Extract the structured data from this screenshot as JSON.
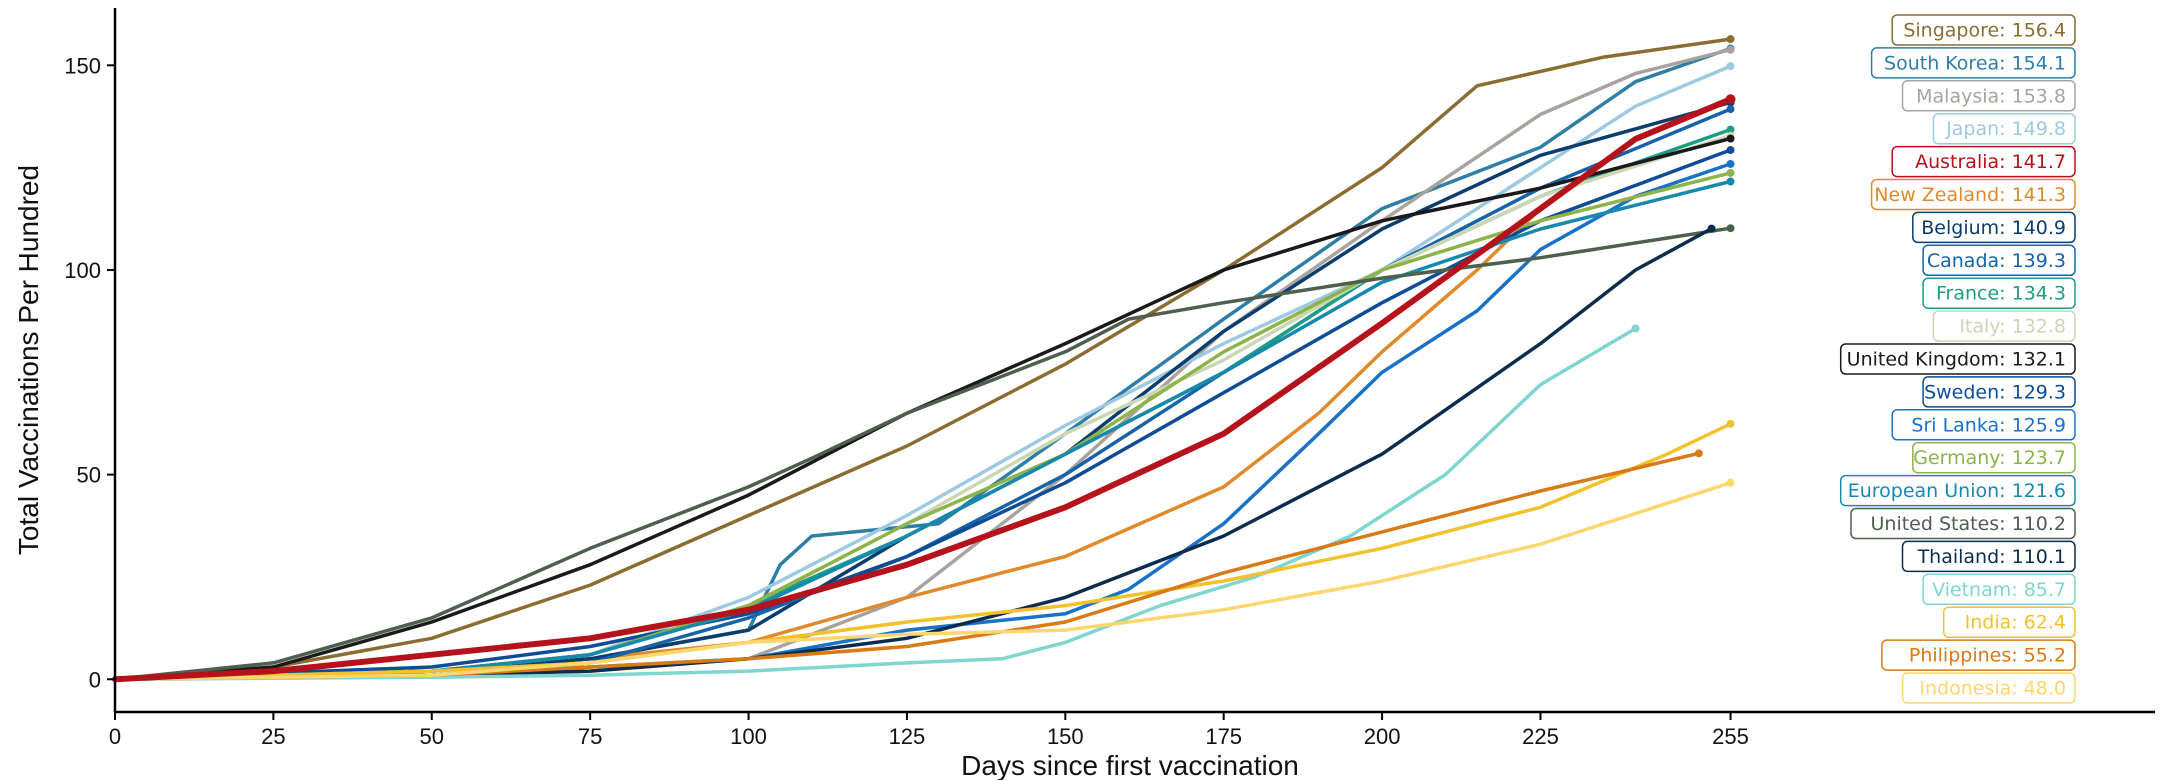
{
  "chart_data": {
    "type": "line",
    "xlabel": "Days since first vaccination",
    "ylabel": "Total Vaccinations Per Hundred",
    "xlim": [
      0,
      322
    ],
    "ylim": [
      -8,
      164
    ],
    "xticks": [
      0,
      25,
      50,
      75,
      100,
      125,
      150,
      175,
      200,
      225,
      255
    ],
    "yticks": [
      0,
      50,
      100,
      150
    ],
    "grid": false,
    "legend_placement": "right",
    "series": [
      {
        "name": "Singapore",
        "label": "Singapore: 156.4",
        "color": "#8c6d31",
        "width": 3.5,
        "points": [
          [
            0,
            0
          ],
          [
            25,
            3
          ],
          [
            50,
            10
          ],
          [
            75,
            23
          ],
          [
            100,
            40
          ],
          [
            125,
            57
          ],
          [
            150,
            77
          ],
          [
            175,
            100
          ],
          [
            200,
            125
          ],
          [
            215,
            145
          ],
          [
            235,
            152
          ],
          [
            255,
            156.4
          ]
        ]
      },
      {
        "name": "South Korea",
        "label": "South Korea: 154.1",
        "color": "#2e7ea6",
        "width": 3.5,
        "points": [
          [
            0,
            0
          ],
          [
            50,
            2
          ],
          [
            75,
            5
          ],
          [
            100,
            12
          ],
          [
            105,
            28
          ],
          [
            110,
            35
          ],
          [
            130,
            38
          ],
          [
            150,
            60
          ],
          [
            175,
            88
          ],
          [
            200,
            115
          ],
          [
            225,
            130
          ],
          [
            240,
            146
          ],
          [
            255,
            154.1
          ]
        ]
      },
      {
        "name": "Malaysia",
        "label": "Malaysia: 153.8",
        "color": "#a8a39e",
        "width": 3.5,
        "points": [
          [
            0,
            0
          ],
          [
            50,
            1
          ],
          [
            75,
            2
          ],
          [
            100,
            5
          ],
          [
            125,
            20
          ],
          [
            150,
            50
          ],
          [
            175,
            85
          ],
          [
            200,
            112
          ],
          [
            225,
            138
          ],
          [
            240,
            148
          ],
          [
            255,
            153.8
          ]
        ]
      },
      {
        "name": "Japan",
        "label": "Japan: 149.8",
        "color": "#9ecae1",
        "width": 3.5,
        "points": [
          [
            0,
            0
          ],
          [
            50,
            2
          ],
          [
            75,
            6
          ],
          [
            100,
            20
          ],
          [
            125,
            40
          ],
          [
            150,
            62
          ],
          [
            175,
            82
          ],
          [
            200,
            100
          ],
          [
            225,
            125
          ],
          [
            240,
            140
          ],
          [
            255,
            149.8
          ]
        ]
      },
      {
        "name": "Australia",
        "label": "Australia: 141.7",
        "color": "#b5121b",
        "width": 6,
        "points": [
          [
            0,
            0
          ],
          [
            25,
            2
          ],
          [
            50,
            6
          ],
          [
            75,
            10
          ],
          [
            100,
            17
          ],
          [
            125,
            28
          ],
          [
            150,
            42
          ],
          [
            175,
            60
          ],
          [
            200,
            87
          ],
          [
            225,
            115
          ],
          [
            240,
            132
          ],
          [
            255,
            141.7
          ]
        ]
      },
      {
        "name": "New Zealand",
        "label": "New Zealand: 141.3",
        "color": "#e08a2c",
        "width": 3.5,
        "points": [
          [
            0,
            0
          ],
          [
            50,
            2
          ],
          [
            75,
            5
          ],
          [
            100,
            9
          ],
          [
            125,
            20
          ],
          [
            150,
            30
          ],
          [
            175,
            47
          ],
          [
            190,
            65
          ],
          [
            200,
            80
          ],
          [
            215,
            100
          ],
          [
            225,
            115
          ],
          [
            240,
            132
          ],
          [
            255,
            141.3
          ]
        ]
      },
      {
        "name": "Belgium",
        "label": "Belgium: 140.9",
        "color": "#0b3d6e",
        "width": 3.5,
        "points": [
          [
            0,
            0
          ],
          [
            50,
            2
          ],
          [
            75,
            5
          ],
          [
            100,
            12
          ],
          [
            125,
            35
          ],
          [
            150,
            55
          ],
          [
            175,
            85
          ],
          [
            200,
            110
          ],
          [
            225,
            128
          ],
          [
            255,
            140.9
          ]
        ]
      },
      {
        "name": "Canada",
        "label": "Canada: 139.3",
        "color": "#1763a8",
        "width": 3.5,
        "points": [
          [
            0,
            0
          ],
          [
            50,
            1
          ],
          [
            75,
            4
          ],
          [
            100,
            15
          ],
          [
            125,
            30
          ],
          [
            150,
            50
          ],
          [
            175,
            75
          ],
          [
            200,
            100
          ],
          [
            225,
            120
          ],
          [
            255,
            139.3
          ]
        ]
      },
      {
        "name": "France",
        "label": "France: 134.3",
        "color": "#1d9e80",
        "width": 3.5,
        "points": [
          [
            0,
            0
          ],
          [
            50,
            2
          ],
          [
            75,
            6
          ],
          [
            100,
            18
          ],
          [
            125,
            35
          ],
          [
            150,
            55
          ],
          [
            175,
            75
          ],
          [
            200,
            100
          ],
          [
            225,
            118
          ],
          [
            255,
            134.3
          ]
        ]
      },
      {
        "name": "Italy",
        "label": "Italy: 132.8",
        "color": "#cbd7b4",
        "width": 3.5,
        "points": [
          [
            0,
            0
          ],
          [
            50,
            2
          ],
          [
            75,
            6
          ],
          [
            100,
            18
          ],
          [
            125,
            38
          ],
          [
            150,
            60
          ],
          [
            175,
            78
          ],
          [
            200,
            100
          ],
          [
            225,
            118
          ],
          [
            255,
            132.8
          ]
        ]
      },
      {
        "name": "United Kingdom",
        "label": "United Kingdom: 132.1",
        "color": "#1a1a1a",
        "width": 3.5,
        "points": [
          [
            0,
            0
          ],
          [
            25,
            3
          ],
          [
            50,
            14
          ],
          [
            75,
            28
          ],
          [
            100,
            45
          ],
          [
            125,
            65
          ],
          [
            150,
            82
          ],
          [
            175,
            100
          ],
          [
            200,
            112
          ],
          [
            225,
            120
          ],
          [
            255,
            132.1
          ]
        ]
      },
      {
        "name": "Sweden",
        "label": "Sweden: 129.3",
        "color": "#0f4c96",
        "width": 3.5,
        "points": [
          [
            0,
            0
          ],
          [
            50,
            3
          ],
          [
            75,
            8
          ],
          [
            100,
            16
          ],
          [
            125,
            30
          ],
          [
            150,
            48
          ],
          [
            175,
            70
          ],
          [
            200,
            92
          ],
          [
            225,
            112
          ],
          [
            255,
            129.3
          ]
        ]
      },
      {
        "name": "Sri Lanka",
        "label": "Sri Lanka: 125.9",
        "color": "#1a72c8",
        "width": 3.5,
        "points": [
          [
            0,
            0
          ],
          [
            50,
            1
          ],
          [
            75,
            3
          ],
          [
            100,
            5
          ],
          [
            125,
            12
          ],
          [
            150,
            16
          ],
          [
            160,
            22
          ],
          [
            175,
            38
          ],
          [
            190,
            60
          ],
          [
            200,
            75
          ],
          [
            215,
            90
          ],
          [
            225,
            105
          ],
          [
            240,
            118
          ],
          [
            255,
            125.9
          ]
        ]
      },
      {
        "name": "Germany",
        "label": "Germany: 123.7",
        "color": "#8db34a",
        "width": 3.5,
        "points": [
          [
            0,
            0
          ],
          [
            50,
            2
          ],
          [
            75,
            6
          ],
          [
            100,
            18
          ],
          [
            125,
            38
          ],
          [
            150,
            55
          ],
          [
            175,
            80
          ],
          [
            200,
            100
          ],
          [
            225,
            112
          ],
          [
            255,
            123.7
          ]
        ]
      },
      {
        "name": "European Union",
        "label": "European Union: 121.6",
        "color": "#168aad",
        "width": 3.5,
        "points": [
          [
            0,
            0
          ],
          [
            50,
            2
          ],
          [
            75,
            6
          ],
          [
            100,
            17
          ],
          [
            125,
            35
          ],
          [
            150,
            55
          ],
          [
            175,
            75
          ],
          [
            200,
            97
          ],
          [
            225,
            110
          ],
          [
            255,
            121.6
          ]
        ]
      },
      {
        "name": "United States",
        "label": "United States: 110.2",
        "color": "#4f5f4d",
        "width": 3.5,
        "points": [
          [
            0,
            0
          ],
          [
            25,
            4
          ],
          [
            50,
            15
          ],
          [
            75,
            32
          ],
          [
            100,
            47
          ],
          [
            110,
            54
          ],
          [
            125,
            65
          ],
          [
            150,
            80
          ],
          [
            160,
            88
          ],
          [
            175,
            92
          ],
          [
            200,
            98
          ],
          [
            225,
            103
          ],
          [
            255,
            110.2
          ]
        ]
      },
      {
        "name": "Thailand",
        "label": "Thailand: 110.1",
        "color": "#0c2c4e",
        "width": 3.5,
        "points": [
          [
            0,
            0
          ],
          [
            50,
            1
          ],
          [
            75,
            2
          ],
          [
            100,
            5
          ],
          [
            125,
            10
          ],
          [
            150,
            20
          ],
          [
            175,
            35
          ],
          [
            200,
            55
          ],
          [
            225,
            82
          ],
          [
            240,
            100
          ],
          [
            252,
            110.1
          ]
        ]
      },
      {
        "name": "Vietnam",
        "label": "Vietnam: 85.7",
        "color": "#7fd6cf",
        "width": 3.5,
        "points": [
          [
            0,
            0
          ],
          [
            50,
            0.5
          ],
          [
            75,
            1
          ],
          [
            100,
            2
          ],
          [
            125,
            4
          ],
          [
            140,
            5
          ],
          [
            150,
            9
          ],
          [
            165,
            18
          ],
          [
            180,
            25
          ],
          [
            195,
            35
          ],
          [
            210,
            50
          ],
          [
            225,
            72
          ],
          [
            240,
            85.7
          ]
        ]
      },
      {
        "name": "India",
        "label": "India: 62.4",
        "color": "#f2c12e",
        "width": 3.5,
        "points": [
          [
            0,
            0
          ],
          [
            50,
            2
          ],
          [
            75,
            4
          ],
          [
            100,
            9
          ],
          [
            125,
            14
          ],
          [
            150,
            18
          ],
          [
            175,
            24
          ],
          [
            200,
            32
          ],
          [
            225,
            42
          ],
          [
            245,
            55
          ],
          [
            255,
            62.4
          ]
        ]
      },
      {
        "name": "Philippines",
        "label": "Philippines: 55.2",
        "color": "#d87a16",
        "width": 3.5,
        "points": [
          [
            0,
            0
          ],
          [
            50,
            1
          ],
          [
            75,
            3
          ],
          [
            100,
            5
          ],
          [
            125,
            8
          ],
          [
            150,
            14
          ],
          [
            175,
            26
          ],
          [
            200,
            36
          ],
          [
            225,
            46
          ],
          [
            250,
            55.2
          ]
        ]
      },
      {
        "name": "Indonesia",
        "label": "Indonesia: 48.0",
        "color": "#fcd66e",
        "width": 3.5,
        "points": [
          [
            0,
            0
          ],
          [
            50,
            1
          ],
          [
            75,
            4
          ],
          [
            100,
            9
          ],
          [
            125,
            11
          ],
          [
            150,
            12
          ],
          [
            175,
            17
          ],
          [
            200,
            24
          ],
          [
            225,
            33
          ],
          [
            255,
            48.0
          ]
        ]
      }
    ]
  }
}
